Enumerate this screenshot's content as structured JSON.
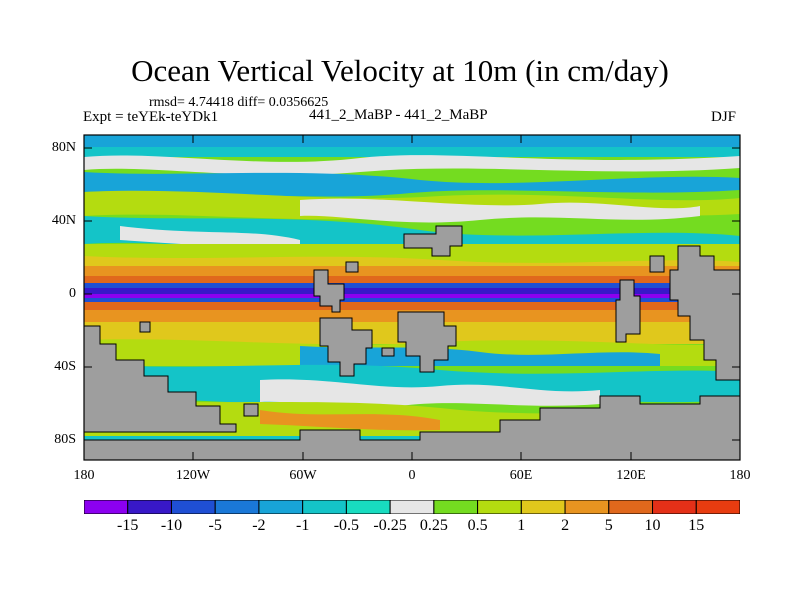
{
  "title": "Ocean Vertical Velocity at 10m (in cm/day)",
  "stats": "rmsd= 4.74418 diff= 0.0356625",
  "experiment": "Expt = teYEk-teYDk1",
  "case": "441_2_MaBP - 441_2_MaBP",
  "season": "DJF",
  "y_axis": {
    "ticks": [
      "80N",
      "40N",
      "0",
      "40S",
      "80S"
    ]
  },
  "x_axis": {
    "ticks": [
      "180",
      "120W",
      "60W",
      "0",
      "60E",
      "120E",
      "180"
    ]
  },
  "colorbar": {
    "labels": [
      "-15",
      "-10",
      "-5",
      "-2",
      "-1",
      "-0.5",
      "-0.25",
      "0.25",
      "0.5",
      "1",
      "2",
      "5",
      "10",
      "15"
    ],
    "colors": [
      "#8c00f0",
      "#3818c8",
      "#1f4fd4",
      "#1a78d8",
      "#18a4d8",
      "#14c4c8",
      "#18dcc0",
      "#e6e6e6",
      "#74dc20",
      "#b4dc10",
      "#e0c81c",
      "#e89420",
      "#e0681c",
      "#e43018",
      "#e83c10"
    ]
  },
  "colors": {
    "land": "#9e9e9e",
    "background": "#ffffff"
  }
}
